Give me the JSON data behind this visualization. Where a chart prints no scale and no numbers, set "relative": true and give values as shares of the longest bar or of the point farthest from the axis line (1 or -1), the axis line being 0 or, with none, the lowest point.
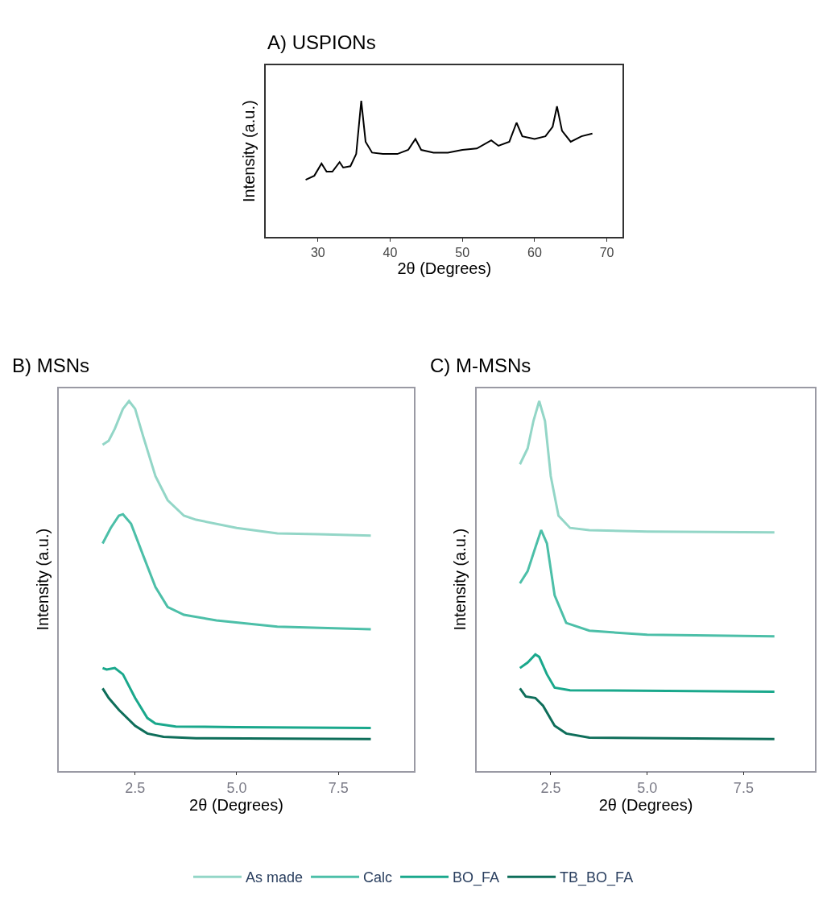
{
  "chart_data": [
    {
      "type": "line",
      "title": "A) USPIONs",
      "xlabel": "2θ (Degrees)",
      "ylabel": "Intensity (a.u.)",
      "relative": true,
      "xlim": [
        22.8,
        72.2
      ],
      "xticks": [
        30,
        40,
        50,
        60,
        70
      ],
      "series": [
        {
          "color": "#000000",
          "x": [
            28.3,
            29.5,
            30.5,
            31.2,
            32,
            33,
            33.5,
            34.5,
            35.3,
            36,
            36.6,
            37.5,
            39,
            41,
            42.5,
            43.5,
            44.3,
            46,
            48,
            50,
            52,
            54,
            55,
            56.5,
            57.5,
            58.3,
            60,
            61.5,
            62.5,
            63.1,
            63.8,
            65,
            66.5,
            68
          ],
          "values": [
            0.42,
            0.45,
            0.54,
            0.48,
            0.48,
            0.55,
            0.51,
            0.52,
            0.61,
            1.0,
            0.7,
            0.62,
            0.61,
            0.61,
            0.64,
            0.72,
            0.64,
            0.62,
            0.62,
            0.64,
            0.65,
            0.71,
            0.67,
            0.7,
            0.84,
            0.74,
            0.72,
            0.74,
            0.81,
            0.96,
            0.78,
            0.7,
            0.74,
            0.76
          ]
        }
      ]
    },
    {
      "type": "line",
      "title": "B) MSNs",
      "xlabel": "2θ (Degrees)",
      "ylabel": "Intensity (a.u.)",
      "relative": true,
      "xlim": [
        0.63,
        9.35
      ],
      "xticks": [
        2.5,
        {
          "value": 5,
          "label": "5.0"
        },
        7.5
      ],
      "legend": "bottom",
      "series": [
        {
          "name": "As made",
          "color": "#93d6c7",
          "x": [
            1.7,
            1.85,
            2.0,
            2.2,
            2.35,
            2.5,
            2.7,
            3.0,
            3.3,
            3.7,
            4.0,
            5.0,
            6.0,
            7.0,
            8.3
          ],
          "values": [
            0.882,
            0.893,
            0.925,
            0.979,
            1.0,
            0.979,
            0.904,
            0.797,
            0.732,
            0.69,
            0.679,
            0.657,
            0.642,
            0.64,
            0.636
          ]
        },
        {
          "name": "Calc",
          "color": "#4cbfa8",
          "x": [
            1.7,
            1.9,
            2.1,
            2.2,
            2.4,
            2.7,
            3.0,
            3.3,
            3.7,
            4.5,
            6.0,
            8.3
          ],
          "values": [
            0.615,
            0.657,
            0.69,
            0.694,
            0.668,
            0.582,
            0.497,
            0.443,
            0.422,
            0.407,
            0.39,
            0.383
          ]
        },
        {
          "name": "BO_FA",
          "color": "#1aa88c",
          "x": [
            1.7,
            1.8,
            2.0,
            2.2,
            2.5,
            2.8,
            3.0,
            3.5,
            5.0,
            8.3
          ],
          "values": [
            0.278,
            0.274,
            0.278,
            0.261,
            0.197,
            0.143,
            0.128,
            0.12,
            0.118,
            0.116
          ]
        },
        {
          "name": "TB_BO_FA",
          "color": "#0e6e5a",
          "x": [
            1.7,
            1.85,
            2.1,
            2.5,
            2.8,
            3.2,
            4.0,
            8.3
          ],
          "values": [
            0.223,
            0.197,
            0.165,
            0.122,
            0.101,
            0.092,
            0.088,
            0.086
          ]
        }
      ]
    },
    {
      "type": "line",
      "title": "C) M-MSNs",
      "xlabel": "2θ (Degrees)",
      "ylabel": "Intensity (a.u.)",
      "relative": true,
      "xlim": [
        0.58,
        9.35
      ],
      "xticks": [
        2.5,
        {
          "value": 5,
          "label": "5.0"
        },
        7.5
      ],
      "series": [
        {
          "color": "#93d6c7",
          "x": [
            1.7,
            1.9,
            2.05,
            2.2,
            2.35,
            2.5,
            2.7,
            3.0,
            3.5,
            5.0,
            8.3
          ],
          "values": [
            0.829,
            0.872,
            0.946,
            1.0,
            0.946,
            0.797,
            0.69,
            0.657,
            0.651,
            0.647,
            0.645
          ]
        },
        {
          "color": "#4cbfa8",
          "x": [
            1.7,
            1.9,
            2.1,
            2.25,
            2.4,
            2.6,
            2.9,
            3.5,
            5.0,
            8.3
          ],
          "values": [
            0.507,
            0.54,
            0.604,
            0.651,
            0.615,
            0.475,
            0.4,
            0.379,
            0.368,
            0.364
          ]
        },
        {
          "color": "#1aa88c",
          "x": [
            1.7,
            1.9,
            2.1,
            2.2,
            2.4,
            2.6,
            3.0,
            8.3
          ],
          "values": [
            0.278,
            0.293,
            0.315,
            0.308,
            0.261,
            0.225,
            0.218,
            0.214
          ]
        },
        {
          "color": "#0e6e5a",
          "x": [
            1.7,
            1.85,
            2.1,
            2.3,
            2.6,
            2.9,
            3.5,
            8.3
          ],
          "values": [
            0.223,
            0.201,
            0.197,
            0.176,
            0.122,
            0.101,
            0.09,
            0.086
          ]
        }
      ]
    }
  ]
}
